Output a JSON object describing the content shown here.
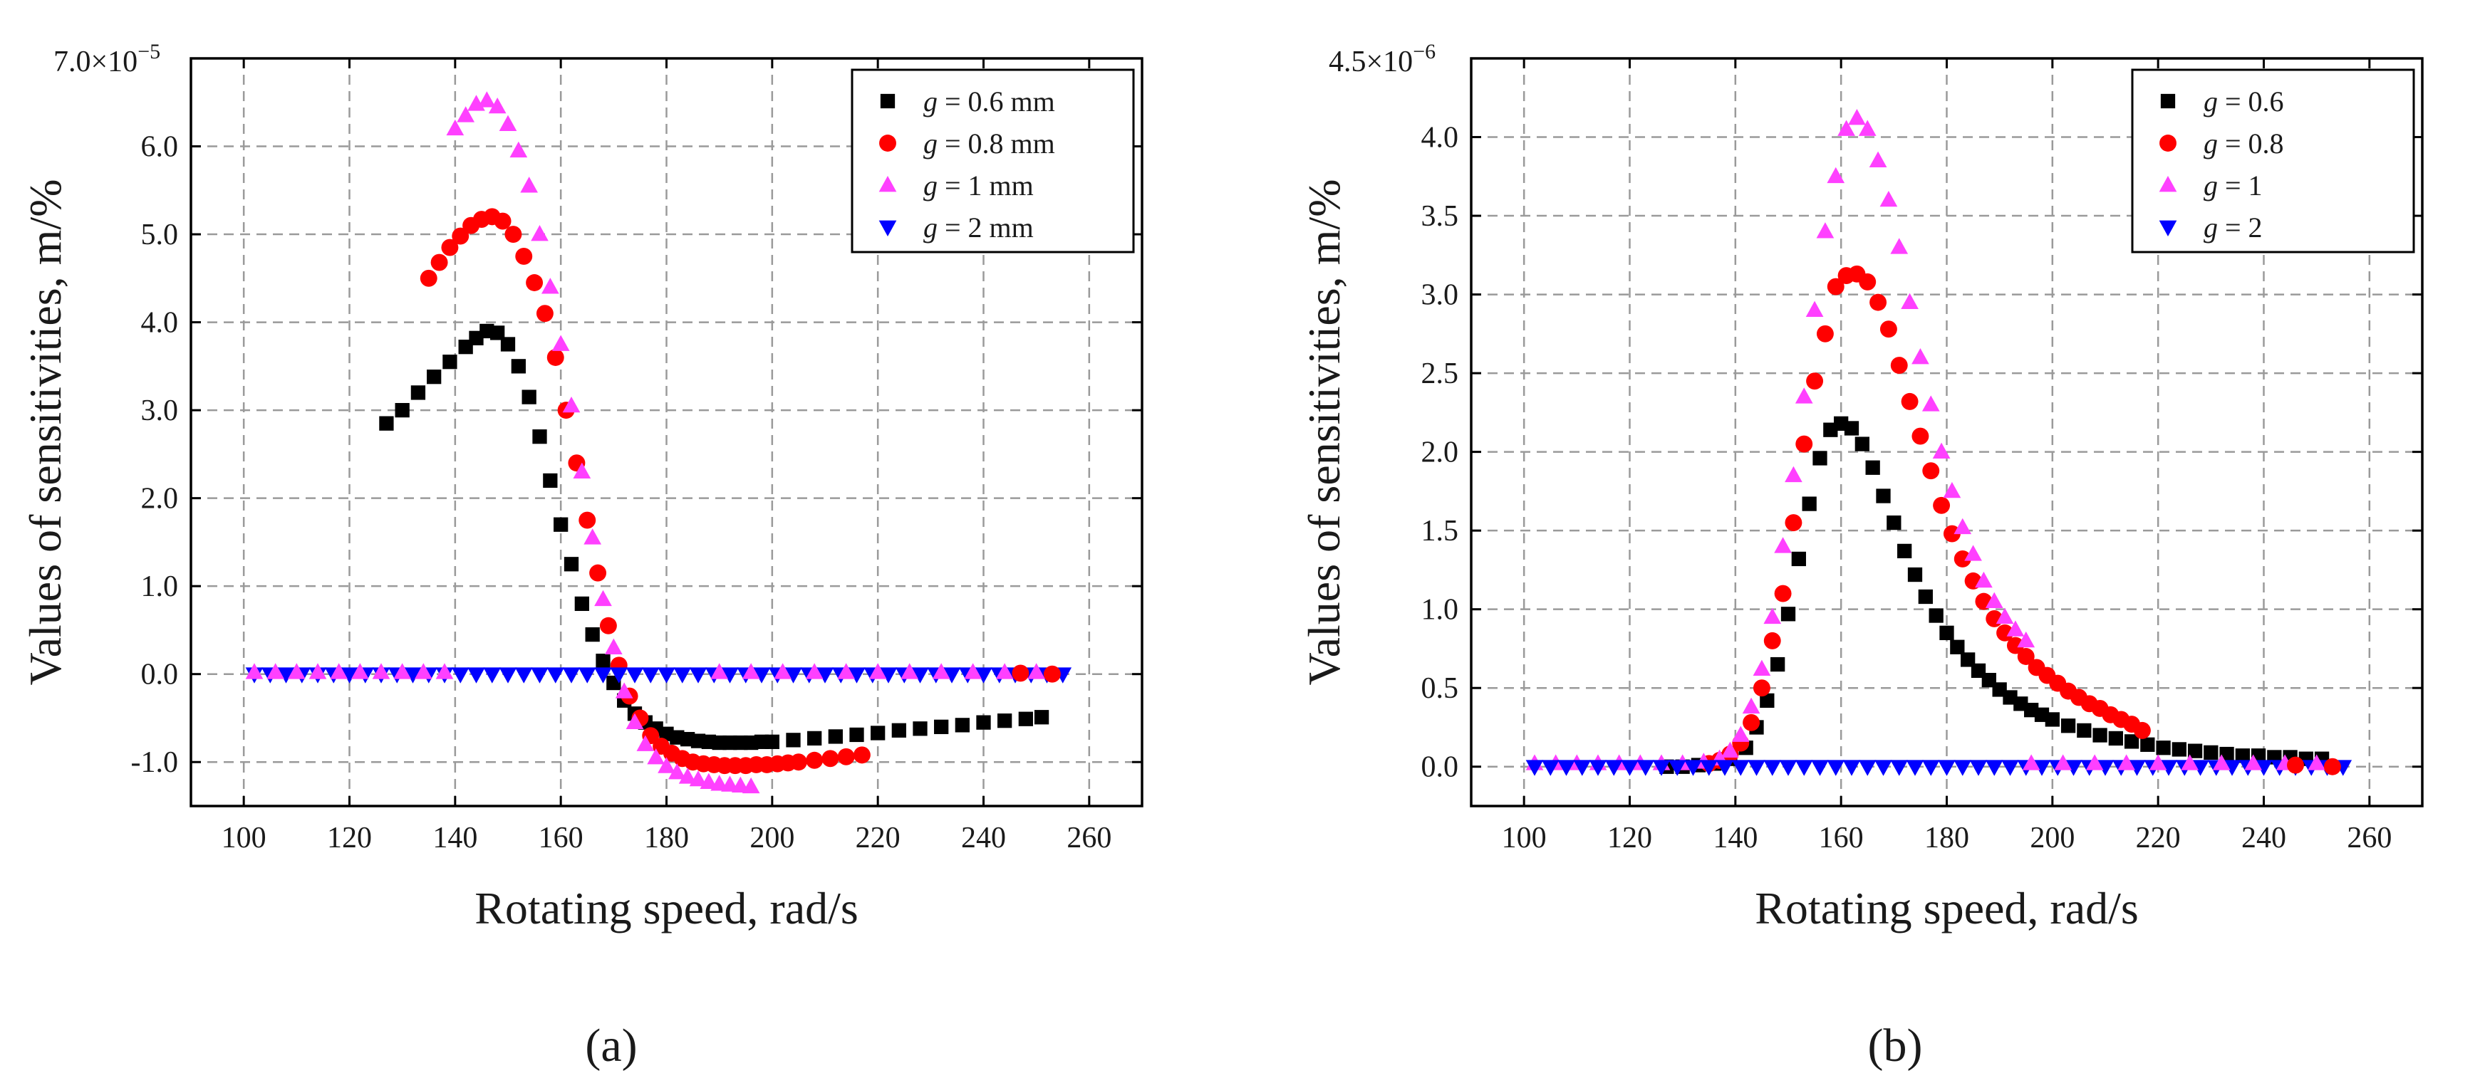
{
  "chart_data": [
    {
      "type": "scatter",
      "panel_label": "(a)",
      "xlabel": "Rotating speed, rad/s",
      "ylabel": "Values of sensitivities, m/%",
      "y_scale_label": "×10",
      "y_scale_base": "7.0",
      "y_scale_exp": "−5",
      "xlim": [
        90,
        270
      ],
      "ylim": [
        -1.5,
        7.0
      ],
      "x_ticks": [
        100,
        120,
        140,
        160,
        180,
        200,
        220,
        240,
        260
      ],
      "x_tick_labels": [
        "100",
        "120",
        "140",
        "160",
        "180",
        "200",
        "220",
        "240",
        "260"
      ],
      "y_ticks": [
        -1.0,
        0.0,
        1.0,
        2.0,
        3.0,
        4.0,
        5.0,
        6.0
      ],
      "y_tick_labels": [
        "-1.0",
        "0.0",
        "1.0",
        "2.0",
        "3.0",
        "4.0",
        "5.0",
        "6.0"
      ],
      "grid": true,
      "legend_position": "top-right",
      "series": [
        {
          "name_var": "g",
          "name_rest": " = 0.6 mm",
          "marker": "square",
          "color": "#000000",
          "x": [
            127,
            130,
            133,
            136,
            139,
            142,
            144,
            146,
            148,
            150,
            152,
            154,
            156,
            158,
            160,
            162,
            164,
            166,
            168,
            170,
            172,
            174,
            176,
            178,
            180,
            182,
            184,
            186,
            188,
            190,
            192,
            194,
            196,
            198,
            200,
            204,
            208,
            212,
            216,
            220,
            224,
            228,
            232,
            236,
            240,
            244,
            248,
            251
          ],
          "y": [
            2.85,
            3.0,
            3.2,
            3.38,
            3.55,
            3.72,
            3.82,
            3.9,
            3.88,
            3.75,
            3.5,
            3.15,
            2.7,
            2.2,
            1.7,
            1.25,
            0.8,
            0.45,
            0.15,
            -0.1,
            -0.3,
            -0.45,
            -0.55,
            -0.62,
            -0.68,
            -0.72,
            -0.74,
            -0.76,
            -0.77,
            -0.78,
            -0.78,
            -0.78,
            -0.78,
            -0.77,
            -0.77,
            -0.75,
            -0.73,
            -0.71,
            -0.69,
            -0.67,
            -0.64,
            -0.62,
            -0.6,
            -0.58,
            -0.55,
            -0.53,
            -0.51,
            -0.49
          ]
        },
        {
          "name_var": "g",
          "name_rest": " = 0.8 mm",
          "marker": "circle",
          "color": "#ff0000",
          "x": [
            135,
            137,
            139,
            141,
            143,
            145,
            147,
            149,
            151,
            153,
            155,
            157,
            159,
            161,
            163,
            165,
            167,
            169,
            171,
            173,
            175,
            177,
            179,
            181,
            183,
            185,
            187,
            189,
            191,
            193,
            195,
            197,
            199,
            201,
            203,
            205,
            208,
            211,
            214,
            217
          ],
          "y": [
            4.5,
            4.68,
            4.85,
            4.98,
            5.1,
            5.17,
            5.2,
            5.15,
            5.0,
            4.75,
            4.45,
            4.1,
            3.6,
            3.0,
            2.4,
            1.75,
            1.15,
            0.55,
            0.1,
            -0.25,
            -0.5,
            -0.7,
            -0.82,
            -0.9,
            -0.96,
            -1.0,
            -1.02,
            -1.03,
            -1.04,
            -1.04,
            -1.04,
            -1.03,
            -1.03,
            -1.02,
            -1.01,
            -1.0,
            -0.98,
            -0.96,
            -0.94,
            -0.92
          ]
        },
        {
          "name_var": "g",
          "name_rest": " = 1 mm",
          "marker": "triangle-up",
          "color": "#ff40ff",
          "x": [
            140,
            142,
            144,
            146,
            148,
            150,
            152,
            154,
            156,
            158,
            160,
            162,
            164,
            166,
            168,
            170,
            172,
            174,
            176,
            178,
            180,
            182,
            184,
            186,
            188,
            190,
            192,
            194,
            196
          ],
          "y": [
            6.2,
            6.35,
            6.48,
            6.52,
            6.45,
            6.25,
            5.95,
            5.55,
            5.0,
            4.4,
            3.75,
            3.05,
            2.3,
            1.55,
            0.85,
            0.3,
            -0.2,
            -0.55,
            -0.8,
            -0.95,
            -1.05,
            -1.12,
            -1.17,
            -1.2,
            -1.23,
            -1.25,
            -1.26,
            -1.27,
            -1.28
          ]
        },
        {
          "name_var": "g",
          "name_rest": " = 2 mm",
          "marker": "triangle-down",
          "color": "#0000ff",
          "x": [
            102,
            105,
            108,
            111,
            114,
            117,
            120,
            123,
            126,
            129,
            132,
            135,
            138,
            141,
            144,
            147,
            150,
            153,
            156,
            159,
            162,
            165,
            168,
            171,
            174,
            177,
            180,
            183,
            186,
            189,
            192,
            195,
            198,
            201,
            204,
            207,
            210,
            213,
            216,
            219,
            222,
            225,
            228,
            231,
            234,
            237,
            240,
            243,
            246,
            249,
            252,
            255
          ],
          "y": [
            0,
            0,
            0,
            0,
            0,
            0,
            0,
            0,
            0,
            0,
            0,
            0,
            0,
            0,
            0,
            0,
            0,
            0,
            0,
            0,
            0,
            0,
            0,
            0,
            0,
            0,
            0,
            0,
            0,
            0,
            0,
            0,
            0,
            0,
            0,
            0,
            0,
            0,
            0,
            0,
            0,
            0,
            0,
            0,
            0,
            0,
            0,
            0,
            0,
            0,
            0,
            0
          ]
        }
      ],
      "overlap_points": [
        {
          "series": 2,
          "marker": "triangle-up",
          "color": "#ff40ff",
          "x": [
            102,
            106,
            110,
            114,
            118,
            122,
            126,
            130,
            134,
            138,
            190,
            196,
            202,
            208,
            214,
            220,
            226,
            232,
            238,
            244,
            250
          ],
          "y": [
            0.02,
            0.02,
            0.02,
            0.02,
            0.02,
            0.02,
            0.02,
            0.02,
            0.02,
            0.02,
            0.02,
            0.02,
            0.02,
            0.02,
            0.02,
            0.02,
            0.02,
            0.02,
            0.02,
            0.02,
            0.02
          ]
        },
        {
          "series": 1,
          "marker": "circle",
          "color": "#ff0000",
          "x": [
            247,
            253
          ],
          "y": [
            0.01,
            0.0
          ]
        }
      ]
    },
    {
      "type": "scatter",
      "panel_label": "(b)",
      "xlabel": "Rotating speed, rad/s",
      "ylabel": "Values of sensitivities, m/%",
      "y_scale_label": "×10",
      "y_scale_base": "4.5",
      "y_scale_exp": "−6",
      "xlim": [
        90,
        270
      ],
      "ylim": [
        -0.25,
        4.5
      ],
      "x_ticks": [
        100,
        120,
        140,
        160,
        180,
        200,
        220,
        240,
        260
      ],
      "x_tick_labels": [
        "100",
        "120",
        "140",
        "160",
        "180",
        "200",
        "220",
        "240",
        "260"
      ],
      "y_ticks": [
        0.0,
        0.5,
        1.0,
        1.5,
        2.0,
        2.5,
        3.0,
        3.5,
        4.0
      ],
      "y_tick_labels": [
        "0.0",
        "0.5",
        "1.0",
        "1.5",
        "2.0",
        "2.5",
        "3.0",
        "3.5",
        "4.0"
      ],
      "grid": true,
      "legend_position": "top-right",
      "series": [
        {
          "name_var": "g",
          "name_rest": " = 0.6",
          "marker": "square",
          "color": "#000000",
          "x": [
            127,
            130,
            133,
            136,
            139,
            142,
            144,
            146,
            148,
            150,
            152,
            154,
            156,
            158,
            160,
            162,
            164,
            166,
            168,
            170,
            172,
            174,
            176,
            178,
            180,
            182,
            184,
            186,
            188,
            190,
            192,
            194,
            196,
            198,
            200,
            203,
            206,
            209,
            212,
            215,
            218,
            221,
            224,
            227,
            230,
            233,
            236,
            239,
            242,
            245,
            248,
            251
          ],
          "y": [
            0.0,
            0.0,
            0.01,
            0.02,
            0.05,
            0.12,
            0.25,
            0.42,
            0.65,
            0.97,
            1.32,
            1.67,
            1.96,
            2.14,
            2.18,
            2.15,
            2.05,
            1.9,
            1.72,
            1.55,
            1.37,
            1.22,
            1.08,
            0.96,
            0.85,
            0.76,
            0.68,
            0.61,
            0.55,
            0.49,
            0.44,
            0.4,
            0.36,
            0.33,
            0.3,
            0.26,
            0.23,
            0.2,
            0.18,
            0.16,
            0.14,
            0.12,
            0.11,
            0.1,
            0.09,
            0.08,
            0.07,
            0.07,
            0.06,
            0.06,
            0.05,
            0.05
          ]
        },
        {
          "name_var": "g",
          "name_rest": " = 0.8",
          "marker": "circle",
          "color": "#ff0000",
          "x": [
            135,
            137,
            139,
            141,
            143,
            145,
            147,
            149,
            151,
            153,
            155,
            157,
            159,
            161,
            163,
            165,
            167,
            169,
            171,
            173,
            175,
            177,
            179,
            181,
            183,
            185,
            187,
            189,
            191,
            193,
            195,
            197,
            199,
            201,
            203,
            205,
            207,
            209,
            211,
            213,
            215,
            217
          ],
          "y": [
            0.02,
            0.04,
            0.08,
            0.15,
            0.28,
            0.5,
            0.8,
            1.1,
            1.55,
            2.05,
            2.45,
            2.75,
            3.05,
            3.12,
            3.13,
            3.08,
            2.95,
            2.78,
            2.55,
            2.32,
            2.1,
            1.88,
            1.66,
            1.48,
            1.32,
            1.18,
            1.05,
            0.94,
            0.85,
            0.77,
            0.7,
            0.63,
            0.58,
            0.53,
            0.48,
            0.44,
            0.4,
            0.37,
            0.33,
            0.3,
            0.27,
            0.23
          ]
        },
        {
          "name_var": "g",
          "name_rest": " = 1",
          "marker": "triangle-up",
          "color": "#ff40ff",
          "x": [
            102,
            106,
            110,
            114,
            118,
            122,
            126,
            130,
            134,
            137,
            139,
            141,
            143,
            145,
            147,
            149,
            151,
            153,
            155,
            157,
            159,
            161,
            163,
            165,
            167,
            169,
            171,
            173,
            175,
            177,
            179,
            181,
            183,
            185,
            187,
            189,
            191,
            193,
            195
          ],
          "y": [
            0.02,
            0.02,
            0.02,
            0.02,
            0.02,
            0.02,
            0.02,
            0.02,
            0.03,
            0.05,
            0.1,
            0.2,
            0.38,
            0.62,
            0.95,
            1.4,
            1.85,
            2.35,
            2.9,
            3.4,
            3.75,
            4.05,
            4.12,
            4.05,
            3.85,
            3.6,
            3.3,
            2.95,
            2.6,
            2.3,
            2.0,
            1.75,
            1.52,
            1.35,
            1.18,
            1.05,
            0.95,
            0.87,
            0.8
          ]
        },
        {
          "name_var": "g",
          "name_rest": " = 2",
          "marker": "triangle-down",
          "color": "#0000ff",
          "x": [
            102,
            105,
            108,
            111,
            114,
            117,
            120,
            123,
            126,
            129,
            132,
            135,
            138,
            141,
            144,
            147,
            150,
            153,
            156,
            159,
            162,
            165,
            168,
            171,
            174,
            177,
            180,
            183,
            186,
            189,
            192,
            195,
            198,
            201,
            204,
            207,
            210,
            213,
            216,
            219,
            222,
            225,
            228,
            231,
            234,
            237,
            240,
            243,
            246,
            249,
            252,
            255
          ],
          "y": [
            0,
            0,
            0,
            0,
            0,
            0,
            0,
            0,
            0,
            0,
            0,
            0,
            0,
            0,
            0,
            0,
            0,
            0,
            0,
            0,
            0,
            0,
            0,
            0,
            0,
            0,
            0,
            0,
            0,
            0,
            0,
            0,
            0,
            0,
            0,
            0,
            0,
            0,
            0,
            0,
            0,
            0,
            0,
            0,
            0,
            0,
            0,
            0,
            0,
            0,
            0,
            0
          ]
        }
      ],
      "overlap_points": [
        {
          "series": 2,
          "marker": "triangle-up",
          "color": "#ff40ff",
          "x": [
            196,
            202,
            208,
            214,
            220,
            226,
            232,
            238,
            244,
            250
          ],
          "y": [
            0.02,
            0.02,
            0.02,
            0.02,
            0.02,
            0.02,
            0.02,
            0.02,
            0.02,
            0.02
          ]
        },
        {
          "series": 1,
          "marker": "circle",
          "color": "#ff0000",
          "x": [
            246,
            253
          ],
          "y": [
            0.01,
            0.0
          ]
        }
      ]
    }
  ]
}
